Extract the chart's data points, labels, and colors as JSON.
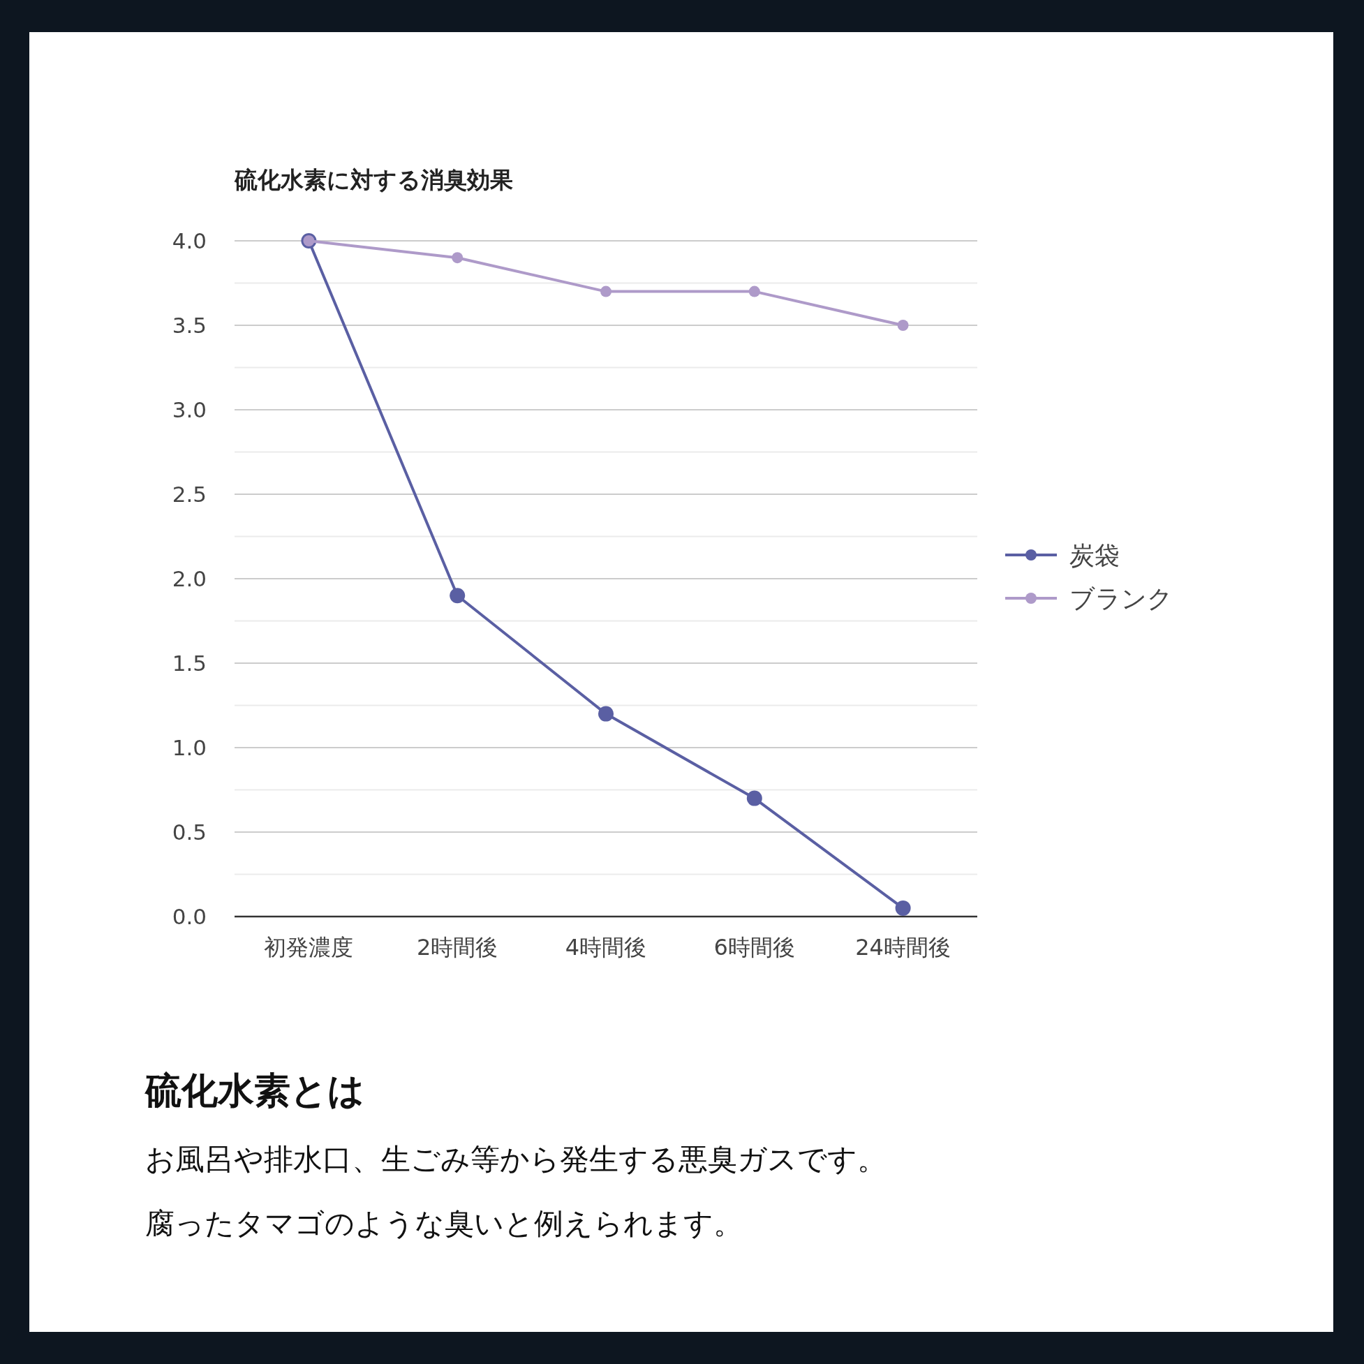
{
  "chart_data": {
    "type": "line",
    "title": "硫化水素に対する消臭効果",
    "categories": [
      "初発濃度",
      "2時間後",
      "4時間後",
      "6時間後",
      "24時間後"
    ],
    "series": [
      {
        "name": "炭袋",
        "color": "#5a5fa3",
        "values": [
          4.0,
          1.9,
          1.2,
          0.7,
          0.05
        ]
      },
      {
        "name": "ブランク",
        "color": "#ae9ac9",
        "values": [
          4.0,
          3.9,
          3.7,
          3.7,
          3.5
        ]
      }
    ],
    "ylim": [
      0,
      4
    ],
    "yticks": [
      {
        "value": 0,
        "label": "0.0"
      },
      {
        "value": 0.25,
        "label": null
      },
      0.5,
      {
        "value": 0.75,
        "label": null
      },
      {
        "value": 1,
        "label": "1.0"
      },
      {
        "value": 1.25,
        "label": null
      },
      1.5,
      {
        "value": 1.75,
        "label": null
      },
      {
        "value": 2,
        "label": "2.0"
      },
      {
        "value": 2.25,
        "label": null
      },
      2.5,
      {
        "value": 2.75,
        "label": null
      },
      {
        "value": 3,
        "label": "3.0"
      },
      {
        "value": 3.25,
        "label": null
      },
      3.5,
      {
        "value": 3.75,
        "label": null
      },
      {
        "value": 4,
        "label": "4.0"
      }
    ],
    "grid": "y",
    "legend": "right",
    "marker": "circle",
    "annotations": [
      "硫化水素とは",
      "お風呂や排水口、生ごみ等から発生する悪臭ガスです。",
      "腐ったタマゴのような臭いと例えられます。"
    ]
  }
}
